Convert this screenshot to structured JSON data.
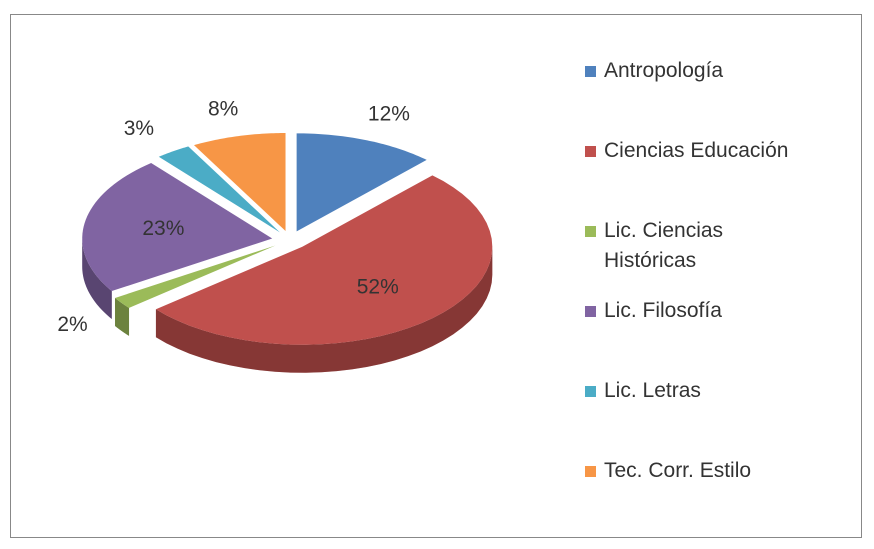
{
  "chart_data": {
    "type": "pie",
    "categories": [
      "Antropología",
      "Ciencias Educación",
      "Lic. Ciencias Históricas",
      "Lic. Filosofía",
      "Lic. Letras",
      "Tec. Corr. Estilo"
    ],
    "values": [
      12,
      52,
      2,
      23,
      3,
      8
    ],
    "value_labels": [
      "12%",
      "52%",
      "2%",
      "23%",
      "3%",
      "8%"
    ],
    "colors": [
      "#4f81bd",
      "#c0504d",
      "#9bbb59",
      "#8064a2",
      "#4bacc6",
      "#f79646"
    ],
    "legend": "right"
  }
}
